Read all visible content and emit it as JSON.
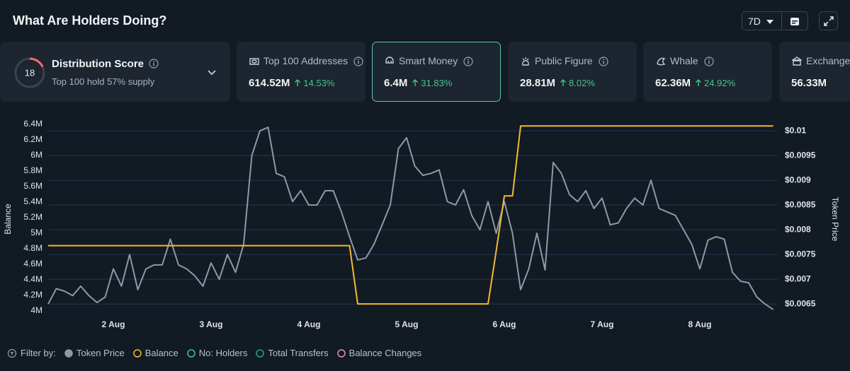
{
  "header": {
    "title": "What Are Holders Doing?",
    "period": "7D"
  },
  "distribution": {
    "score": 18,
    "title": "Distribution Score",
    "subtitle": "Top 100 hold 57% supply"
  },
  "cards": [
    {
      "label": "Top 100 Addresses",
      "value": "614.52M",
      "change": "14.53%"
    },
    {
      "label": "Smart Money",
      "value": "6.4M",
      "change": "31.83%",
      "selected": true
    },
    {
      "label": "Public Figure",
      "value": "28.81M",
      "change": "8.02%"
    },
    {
      "label": "Whale",
      "value": "62.36M",
      "change": "24.92%"
    },
    {
      "label": "Exchange",
      "value": "56.33M"
    }
  ],
  "chart_data": {
    "type": "line",
    "categories": [
      null,
      null,
      null,
      null,
      null,
      null,
      null,
      null,
      "2 Aug",
      null,
      null,
      null,
      null,
      null,
      null,
      null,
      null,
      null,
      null,
      null,
      "3 Aug",
      null,
      null,
      null,
      null,
      null,
      null,
      null,
      null,
      null,
      null,
      null,
      "4 Aug",
      null,
      null,
      null,
      null,
      null,
      null,
      null,
      null,
      null,
      null,
      null,
      "5 Aug",
      null,
      null,
      null,
      null,
      null,
      null,
      null,
      null,
      null,
      null,
      null,
      "6 Aug",
      null,
      null,
      null,
      null,
      null,
      null,
      null,
      null,
      null,
      null,
      null,
      "7 Aug",
      null,
      null,
      null,
      null,
      null,
      null,
      null,
      null,
      null,
      null,
      null,
      "8 Aug",
      null,
      null,
      null,
      null,
      null,
      null,
      null,
      null,
      null
    ],
    "series": [
      {
        "name": "Token Price",
        "color": "#8d99a6",
        "axis": "y2",
        "values": [
          0.0065,
          0.00681,
          0.00676,
          0.00667,
          0.00686,
          0.00667,
          0.00653,
          0.00664,
          0.00721,
          0.00686,
          0.0075,
          0.00679,
          0.00721,
          0.00729,
          0.00729,
          0.00781,
          0.00729,
          0.00721,
          0.00707,
          0.00686,
          0.00733,
          0.007,
          0.0075,
          0.00714,
          0.00771,
          0.0095,
          0.01,
          0.01007,
          0.00914,
          0.00907,
          0.00857,
          0.00879,
          0.0085,
          0.0085,
          0.00879,
          0.00879,
          0.00836,
          0.00786,
          0.00739,
          0.00743,
          0.00771,
          0.0081,
          0.0085,
          0.00964,
          0.00986,
          0.00929,
          0.0091,
          0.00914,
          0.00921,
          0.00857,
          0.0085,
          0.00881,
          0.00829,
          0.008,
          0.00857,
          0.00793,
          0.00857,
          0.00793,
          0.00679,
          0.00721,
          0.00793,
          0.00719,
          0.00936,
          0.00914,
          0.00871,
          0.00857,
          0.00879,
          0.00843,
          0.00864,
          0.0081,
          0.00814,
          0.00843,
          0.00864,
          0.0085,
          0.009,
          0.00843,
          0.00836,
          0.00829,
          0.008,
          0.00771,
          0.00721,
          0.00779,
          0.00786,
          0.00781,
          0.00714,
          0.00696,
          0.00693,
          0.00664,
          0.0065,
          0.00639
        ]
      },
      {
        "name": "Balance",
        "color": "#f3ba2f",
        "values": [
          4840000,
          4840000,
          4840000,
          4840000,
          4840000,
          4840000,
          4840000,
          4840000,
          4840000,
          4840000,
          4840000,
          4840000,
          4840000,
          4840000,
          4840000,
          4840000,
          4840000,
          4840000,
          4840000,
          4840000,
          4840000,
          4840000,
          4840000,
          4840000,
          4840000,
          4840000,
          4840000,
          4840000,
          4840000,
          4840000,
          4840000,
          4840000,
          4840000,
          4840000,
          4840000,
          4840000,
          4840000,
          4840000,
          4090000,
          4090000,
          4090000,
          4090000,
          4090000,
          4090000,
          4090000,
          4090000,
          4090000,
          4090000,
          4090000,
          4090000,
          4090000,
          4090000,
          4090000,
          4090000,
          4090000,
          4770000,
          5480000,
          5480000,
          6380000,
          6380000,
          6380000,
          6380000,
          6380000,
          6380000,
          6380000,
          6380000,
          6380000,
          6380000,
          6380000,
          6380000,
          6380000,
          6380000,
          6380000,
          6380000,
          6380000,
          6380000,
          6380000,
          6380000,
          6380000,
          6380000,
          6380000,
          6380000,
          6380000,
          6380000,
          6380000,
          6380000,
          6380000,
          6380000,
          6380000,
          6380000
        ]
      }
    ],
    "ylabel": "Balance",
    "y2label": "Token Price",
    "ylim": [
      4000000,
      6400000
    ],
    "yticks": [
      {
        "value": 4000000,
        "label": "4M"
      },
      {
        "value": 4200000,
        "label": "4.2M"
      },
      {
        "value": 4400000,
        "label": "4.4M"
      },
      {
        "value": 4600000,
        "label": "4.6M"
      },
      {
        "value": 4800000,
        "label": "4.8M"
      },
      {
        "value": 5000000,
        "label": "5M"
      },
      {
        "value": 5200000,
        "label": "5.2M"
      },
      {
        "value": 5400000,
        "label": "5.4M"
      },
      {
        "value": 5600000,
        "label": "5.6M"
      },
      {
        "value": 5800000,
        "label": "5.8M"
      },
      {
        "value": 6000000,
        "label": "6M"
      },
      {
        "value": 6200000,
        "label": "6.2M"
      },
      {
        "value": 6400000,
        "label": "6.4M"
      }
    ],
    "y2lim": [
      0.00636,
      0.01013
    ],
    "y2ticks": [
      {
        "value": 0.0065,
        "label": "$0.0065"
      },
      {
        "value": 0.007,
        "label": "$0.007"
      },
      {
        "value": 0.0075,
        "label": "$0.0075"
      },
      {
        "value": 0.008,
        "label": "$0.008"
      },
      {
        "value": 0.0085,
        "label": "$0.0085"
      },
      {
        "value": 0.009,
        "label": "$0.009"
      },
      {
        "value": 0.0095,
        "label": "$0.0095"
      },
      {
        "value": 0.01,
        "label": "$0.01"
      }
    ],
    "grid": "y2",
    "filter_label": "Filter by:",
    "other_filters": [
      {
        "name": "No: Holders",
        "color": "#3fbfae"
      },
      {
        "name": "Total Transfers",
        "color": "#2b9e90"
      },
      {
        "name": "Balance Changes",
        "color": "#e58bc4"
      }
    ]
  }
}
